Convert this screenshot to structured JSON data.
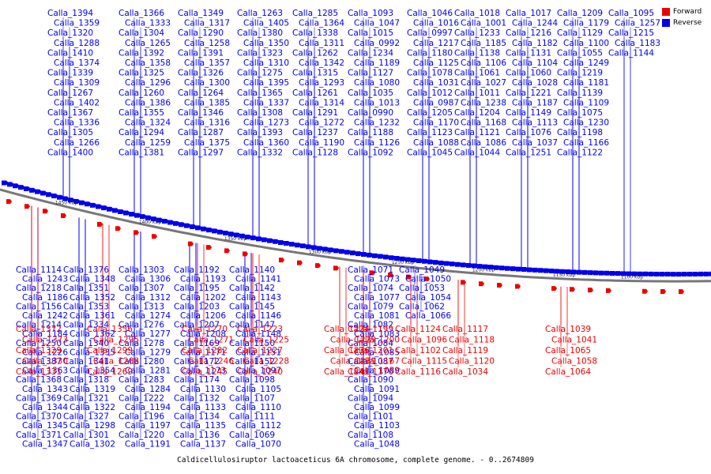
{
  "caption": "Caldicellulosiruptor lactoaceticus 6A chromosome, complete genome. - 0..2674809",
  "legend": [
    {
      "label": "Forward",
      "color": "#ee0000"
    },
    {
      "label": "Reverse",
      "color": "#0000ee"
    }
  ],
  "colors": {
    "forward": "#ee0000",
    "reverse": "#0000ee",
    "backbone": "#777777"
  },
  "ticks": [
    "1100 kbp",
    "1150 kbp",
    "1200 kbp",
    "1250 kbp",
    "1300 kbp",
    "1350 kbp",
    "1400 kbp",
    "1450 kbp"
  ],
  "reverse_genes": [
    "Calla_1394",
    "Calla_1359",
    "Calla_1320",
    "Calla_1288",
    "Calla_1410",
    "Calla_1374",
    "Calla_1339",
    "Calla_1309",
    "Calla_1267",
    "Calla_1402",
    "Calla_1367",
    "Calla_1336",
    "Calla_1305",
    "Calla_1266",
    "Calla_1400",
    "Calla_1366",
    "Calla_1333",
    "Calla_1304",
    "Calla_1265",
    "Calla_1392",
    "Calla_1358",
    "Calla_1325",
    "Calla_1296",
    "Calla_1260",
    "Calla_1386",
    "Calla_1355",
    "Calla_1324",
    "Calla_1294",
    "Calla_1259",
    "Calla_1381",
    "Calla_1349",
    "Calla_1317",
    "Calla_1290",
    "Calla_1258",
    "Calla_1391",
    "Calla_1357",
    "Calla_1326",
    "Calla_1300",
    "Calla_1264",
    "Calla_1385",
    "Calla_1346",
    "Calla_1316",
    "Calla_1287",
    "Calla_1375",
    "Calla_1297",
    "Calla_1263",
    "Calla_1405",
    "Calla_1380",
    "Calla_1350",
    "Calla_1323",
    "Calla_1310",
    "Calla_1275",
    "Calla_1395",
    "Calla_1365",
    "Calla_1337",
    "Calla_1308",
    "Calla_1273",
    "Calla_1393",
    "Calla_1360",
    "Calla_1332",
    "Calla_1285",
    "Calla_1364",
    "Calla_1338",
    "Calla_1311",
    "Calla_1262",
    "Calla_1342",
    "Calla_1315",
    "Calla_1293",
    "Calla_1261",
    "Calla_1314",
    "Calla_1291",
    "Calla_1272",
    "Calla_1237",
    "Calla_1190",
    "Calla_1128",
    "Calla_1093",
    "Calla_1047",
    "Calla_1015",
    "Calla_0992",
    "Calla_1234",
    "Calla_1189",
    "Calla_1127",
    "Calla_1080",
    "Calla_1035",
    "Calla_1013",
    "Calla_0990",
    "Calla_1232",
    "Calla_1188",
    "Calla_1126",
    "Calla_1092",
    "Calla_1046",
    "Calla_1016",
    "Calla_0997",
    "Calla_1217",
    "Calla_1180",
    "Calla_1125",
    "Calla_1078",
    "Calla_1031",
    "Calla_1012",
    "Calla_0987",
    "Calla_1205",
    "Calla_1170",
    "Calla_1123",
    "Calla_1088",
    "Calla_1045",
    "Calla_1018",
    "Calla_1001",
    "Calla_1233",
    "Calla_1185",
    "Calla_1138",
    "Calla_1106",
    "Calla_1061",
    "Calla_1027",
    "Calla_1011",
    "Calla_1238",
    "Calla_1204",
    "Calla_1168",
    "Calla_1121",
    "Calla_1086",
    "Calla_1044",
    "Calla_1017",
    "Calla_1244",
    "Calla_1216",
    "Calla_1182",
    "Calla_1131",
    "Calla_1104",
    "Calla_1060",
    "Calla_1028",
    "Calla_1221",
    "Calla_1187",
    "Calla_1149",
    "Calla_1113",
    "Calla_1076",
    "Calla_1037",
    "Calla_1251",
    "Calla_1209",
    "Calla_1179",
    "Calla_1129",
    "Calla_1100",
    "Calla_1055",
    "Calla_1249",
    "Calla_1219",
    "Calla_1181",
    "Calla_1139",
    "Calla_1109",
    "Calla_1075",
    "Calla_1230",
    "Calla_1198",
    "Calla_1166",
    "Calla_1122",
    "Calla_1095",
    "Calla_1257",
    "Calla_1215",
    "Calla_1183",
    "Calla_1144",
    "Calla_1114",
    "Calla_1243",
    "Calla_1218",
    "Calla_1186",
    "Calla_1156",
    "Calla_1242",
    "Calla_1214",
    "Calla_1184",
    "Calla_1250",
    "Calla_1226",
    "Calla_1387",
    "Calla_1363",
    "Calla_1368",
    "Calla_1343",
    "Calla_1369",
    "Calla_1344",
    "Calla_1370",
    "Calla_1345",
    "Calla_1371",
    "Calla_1347",
    "Calla_1376",
    "Calla_1348",
    "Calla_1351",
    "Calla_1352",
    "Calla_1353",
    "Calla_1361",
    "Calla_1334",
    "Calla_1362",
    "Calla_1340",
    "Calla_1335",
    "Calla_1341",
    "Calla_1354",
    "Calla_1318",
    "Calla_1319",
    "Calla_1321",
    "Calla_1322",
    "Calla_1327",
    "Calla_1298",
    "Calla_1301",
    "Calla_1302",
    "Calla_1303",
    "Calla_1306",
    "Calla_1307",
    "Calla_1312",
    "Calla_1313",
    "Calla_1274",
    "Calla_1276",
    "Calla_1277",
    "Calla_1278",
    "Calla_1279",
    "Calla_1280",
    "Calla_1281",
    "Calla_1283",
    "Calla_1284",
    "Calla_1222",
    "Calla_1194",
    "Calla_1196",
    "Calla_1197",
    "Calla_1220",
    "Calla_1191",
    "Calla_1192",
    "Calla_1193",
    "Calla_1195",
    "Calla_1202",
    "Calla_1203",
    "Calla_1206",
    "Calla_1207",
    "Calla_1208",
    "Calla_1169",
    "Calla_1171",
    "Calla_1172",
    "Calla_1173",
    "Calla_1174",
    "Calla_1130",
    "Calla_1132",
    "Calla_1133",
    "Calla_1134",
    "Calla_1135",
    "Calla_1136",
    "Calla_1137",
    "Calla_1140",
    "Calla_1141",
    "Calla_1142",
    "Calla_1143",
    "Calla_1145",
    "Calla_1146",
    "Calla_1147",
    "Calla_1148",
    "Calla_1150",
    "Calla_1151",
    "Calla_1152",
    "Calla_1097",
    "Calla_1098",
    "Calla_1105",
    "Calla_1107",
    "Calla_1110",
    "Calla_1111",
    "Calla_1112",
    "Calla_1069",
    "Calla_1070",
    "Calla_1071",
    "Calla_1073",
    "Calla_1074",
    "Calla_1077",
    "Calla_1079",
    "Calla_1081",
    "Calla_1082",
    "Calla_1083",
    "Calla_1084",
    "Calla_1085",
    "Calla_1087",
    "Calla_1089",
    "Calla_1090",
    "Calla_1091",
    "Calla_1094",
    "Calla_1099",
    "Calla_1101",
    "Calla_1103",
    "Calla_1108",
    "Calla_1048",
    "Calla_1049",
    "Calla_1050",
    "Calla_1053",
    "Calla_1054",
    "Calla_1062",
    "Calla_1066"
  ],
  "forward_genes": [
    "Calla_1372",
    "Calla_1373",
    "Calla_1329",
    "Calla_1330",
    "Calla_1331",
    "Calla_1356",
    "Calla_1295",
    "Calla_1299",
    "Calla_1268",
    "Calla_1269",
    "Calla_1270",
    "Calla_1271",
    "Calla_1282",
    "Calla_1246",
    "Calla_1245",
    "Calla_1223",
    "Calla_1225",
    "Calla_1227",
    "Calla_1228",
    "Calla_1240",
    "Calla_1224",
    "Calla_1229",
    "Calla_1236",
    "Calla_1239",
    "Calla_1241",
    "Calla_1199",
    "Calla_1200",
    "Calla_1201",
    "Calla_1167",
    "Calla_1176",
    "Calla_1124",
    "Calla_1096",
    "Calla_1102",
    "Calla_1115",
    "Calla_1116",
    "Calla_1117",
    "Calla_1118",
    "Calla_1119",
    "Calla_1120",
    "Calla_1034",
    "Calla_1039",
    "Calla_1041",
    "Calla_1065",
    "Calla_1058",
    "Calla_1064"
  ]
}
